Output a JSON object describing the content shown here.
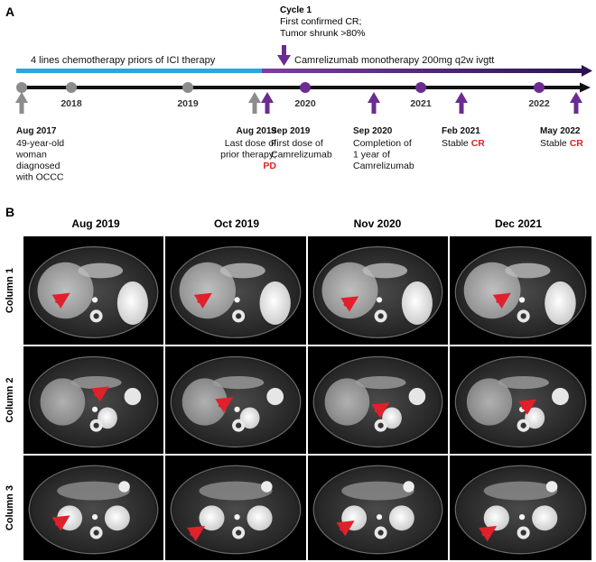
{
  "panel_a": {
    "letter": "A",
    "cycle_note": {
      "title": "Cycle 1",
      "lines": [
        "First confirmed CR;",
        "Tumor shrunk >80%"
      ]
    },
    "chemo_bar": {
      "label": "4 lines chemotherapy priors of ICI therapy",
      "color": "#29a8e0"
    },
    "immuno_bar": {
      "label": "Camrelizumab monotherapy 200mg q2w ivgtt",
      "color_start": "#7b3fa0",
      "color_end": "#2a1550"
    },
    "years": [
      {
        "label": "2018",
        "marker": "grey"
      },
      {
        "label": "2019",
        "marker": "grey"
      },
      {
        "label": "2020",
        "marker": "purple"
      },
      {
        "label": "2021",
        "marker": "purple"
      },
      {
        "label": "2022",
        "marker": "purple"
      }
    ],
    "events": [
      {
        "date": "Aug 2017",
        "lines": [
          "49-year-old",
          "woman",
          "diagnosed",
          "with OCCC"
        ],
        "red": "",
        "arrow": "grey",
        "align": "start"
      },
      {
        "date": "Aug 2019",
        "lines": [
          "Last dose of",
          "prior therapy;"
        ],
        "red": "PD",
        "arrow": "grey",
        "align": "end"
      },
      {
        "date": "Sep 2019",
        "lines": [
          "First dose of",
          "Camrelizumab"
        ],
        "red": "",
        "arrow": "purple",
        "align": "start"
      },
      {
        "date": "Sep 2020",
        "lines": [
          "Completion of",
          "1 year of",
          "Camrelizumab"
        ],
        "red": "",
        "arrow": "purple",
        "align": "start"
      },
      {
        "date": "Feb 2021",
        "lines": [
          "Stable"
        ],
        "red": "CR",
        "arrow": "purple",
        "align": "start"
      },
      {
        "date": "May 2022",
        "lines": [
          "Stable"
        ],
        "red": "CR",
        "arrow": "purple",
        "align": "start"
      }
    ],
    "colors": {
      "grey": "#8c8c8c",
      "purple": "#6a2c91",
      "axis": "#111111",
      "red_text": "#e0202a"
    }
  },
  "panel_b": {
    "letter": "B",
    "columns": [
      "Aug 2019",
      "Oct 2019",
      "Nov 2020",
      "Dec 2021"
    ],
    "rows": [
      "Column 1",
      "Column 2",
      "Column 3"
    ],
    "arrow_color": "#e0202a"
  }
}
